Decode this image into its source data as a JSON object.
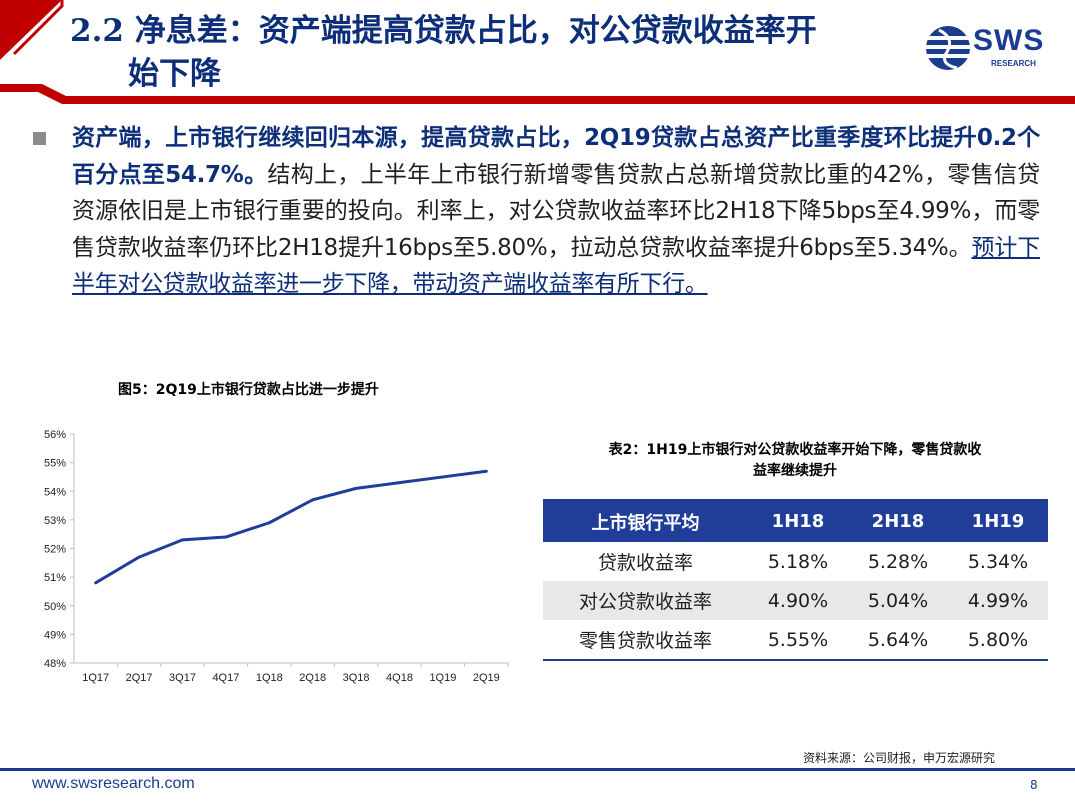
{
  "header": {
    "title_line1": "2.2 净息差：资产端提高贷款占比，对公贷款收益率开",
    "title_line2": "始下降",
    "logo_text": "SWS",
    "logo_sub": "RESEARCH"
  },
  "bullet": {
    "bold": "资产端，上市银行继续回归本源，提高贷款占比，2Q19贷款占总资产比重季度环比提升0.2个百分点至54.7%。",
    "normal": "结构上，上半年上市银行新增零售贷款占总新增贷款比重的42%，零售信贷资源依旧是上市银行重要的投向。利率上，对公贷款收益率环比2H18下降5bps至4.99%，而零售贷款收益率仍环比2H18提升16bps至5.80%，拉动总贷款收益率提升6bps至5.34%。",
    "underline": "预计下半年对公贷款收益率进一步下降，带动资产端收益率有所下行。"
  },
  "figure_title": "图5：2Q19上市银行贷款占比进一步提升",
  "chart_data": {
    "type": "line",
    "categories": [
      "1Q17",
      "2Q17",
      "3Q17",
      "4Q17",
      "1Q18",
      "2Q18",
      "3Q18",
      "4Q18",
      "1Q19",
      "2Q19"
    ],
    "series": [
      {
        "values": [
          50.8,
          51.7,
          52.3,
          52.4,
          52.9,
          53.7,
          54.1,
          54.3,
          54.5,
          54.7
        ]
      }
    ],
    "ylim": [
      48,
      56
    ],
    "yticks": [
      "48%",
      "49%",
      "50%",
      "51%",
      "52%",
      "53%",
      "54%",
      "55%",
      "56%"
    ],
    "color": "#1f3d99",
    "grid": false,
    "legend": "none"
  },
  "table_title_line1": "表2：1H19上市银行对公贷款收益率开始下降，零售贷款收",
  "table_title_line2": "益率继续提升",
  "table": {
    "headers": [
      "上市银行平均",
      "1H18",
      "2H18",
      "1H19"
    ],
    "rows": [
      [
        "贷款收益率",
        "5.18%",
        "5.28%",
        "5.34%"
      ],
      [
        "对公贷款收益率",
        "4.90%",
        "5.04%",
        "4.99%"
      ],
      [
        "零售贷款收益率",
        "5.55%",
        "5.64%",
        "5.80%"
      ]
    ]
  },
  "source": "资料来源：公司财报，申万宏源研究",
  "footer": {
    "url": "www.swsresearch.com",
    "page": "8"
  },
  "colors": {
    "brand_blue": "#1a3c8f",
    "header_red": "#c00000",
    "table_header": "#1f3d99"
  }
}
